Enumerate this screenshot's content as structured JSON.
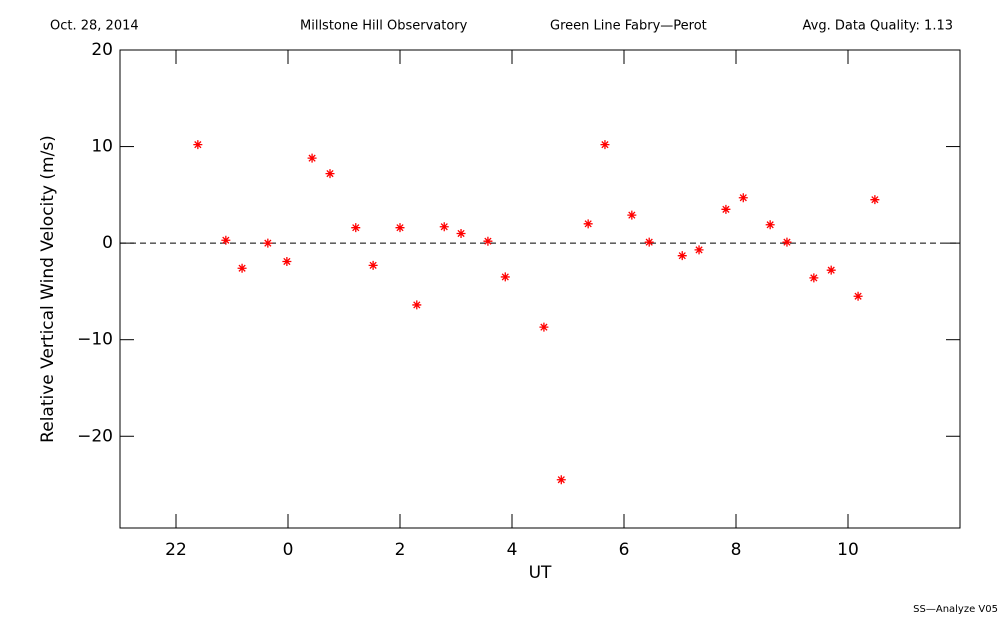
{
  "chart_data": {
    "type": "scatter",
    "header": [
      "Oct. 28, 2014",
      "Millstone Hill Observatory",
      "Green Line Fabry—Perot",
      "Avg. Data Quality: 1.13"
    ],
    "xlabel": "UT",
    "ylabel": "Relative Vertical Wind Velocity (m/s)",
    "footer": "SS—Analyze V05",
    "xlim": [
      -3,
      12
    ],
    "ylim": [
      -29.5,
      20
    ],
    "xticks": [
      {
        "value": -2,
        "label": "22"
      },
      0,
      2,
      4,
      6,
      8,
      10
    ],
    "yticks": [
      {
        "value": -20,
        "label": "−20"
      },
      {
        "value": -10,
        "label": "−10"
      },
      0,
      10,
      20
    ],
    "reference_line": 0,
    "color": "#ff0000",
    "x": [
      -1.61,
      -1.11,
      -0.82,
      -0.36,
      -0.02,
      0.43,
      0.75,
      1.21,
      1.52,
      2.0,
      2.3,
      2.79,
      3.09,
      3.57,
      3.88,
      4.57,
      4.88,
      5.36,
      5.66,
      6.14,
      6.45,
      7.04,
      7.34,
      7.82,
      8.13,
      8.61,
      8.91,
      9.39,
      9.7,
      10.18,
      10.48
    ],
    "values": [
      10.2,
      0.3,
      -2.6,
      0,
      -1.9,
      8.8,
      7.2,
      1.6,
      -2.3,
      1.6,
      -6.4,
      1.7,
      1.0,
      0.2,
      -3.5,
      -8.7,
      -24.5,
      2.0,
      10.2,
      2.9,
      0.1,
      -1.3,
      -0.7,
      3.5,
      4.7,
      1.9,
      0.1,
      -3.6,
      -2.8,
      -5.5,
      4.5
    ]
  }
}
